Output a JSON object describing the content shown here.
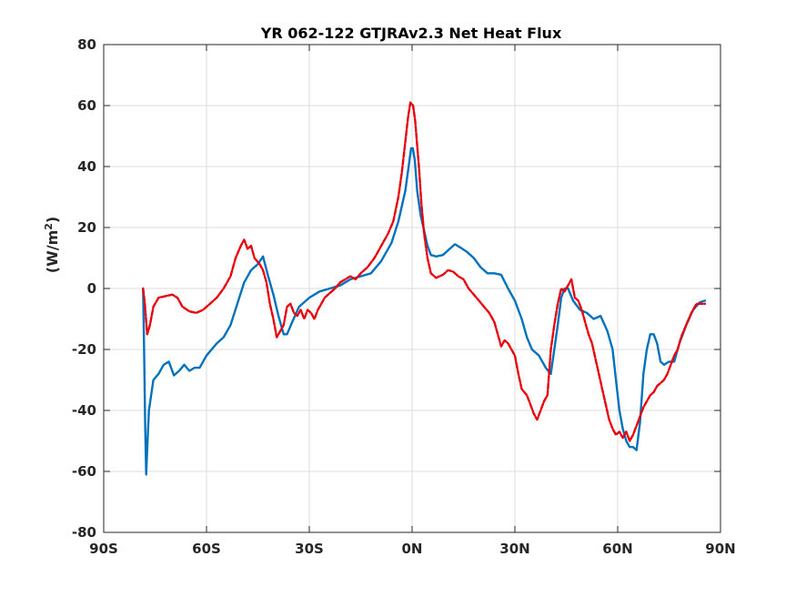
{
  "chart_data": {
    "type": "line",
    "title": "YR 062-122 GTJRAv2.3    Net Heat Flux",
    "xlabel": "",
    "ylabel_main": "(W/m",
    "ylabel_sup": "2",
    "ylabel_close": ")",
    "xlim": [
      -90,
      90
    ],
    "ylim": [
      -80,
      80
    ],
    "grid": true,
    "x_ticks": [
      {
        "value": -90,
        "label": "90S"
      },
      {
        "value": -60,
        "label": "60S"
      },
      {
        "value": -30,
        "label": "30S"
      },
      {
        "value": 0,
        "label": "0N"
      },
      {
        "value": 30,
        "label": "30N"
      },
      {
        "value": 60,
        "label": "60N"
      },
      {
        "value": 90,
        "label": "90N"
      }
    ],
    "y_ticks": [
      {
        "value": 80,
        "label": "80"
      },
      {
        "value": 60,
        "label": "60"
      },
      {
        "value": 40,
        "label": "40"
      },
      {
        "value": 20,
        "label": "20"
      },
      {
        "value": 0,
        "label": "0"
      },
      {
        "value": -20,
        "label": "-20"
      },
      {
        "value": -40,
        "label": "-40"
      },
      {
        "value": -60,
        "label": "-60"
      },
      {
        "value": -80,
        "label": "-80"
      }
    ],
    "series": [
      {
        "color": "#0072BD",
        "style": "solid",
        "points": [
          [
            -78.5,
            0
          ],
          [
            -78.2,
            -20
          ],
          [
            -77.9,
            -45
          ],
          [
            -77.6,
            -61
          ],
          [
            -77.2,
            -50
          ],
          [
            -76.8,
            -40
          ],
          [
            -75.5,
            -30
          ],
          [
            -74,
            -28
          ],
          [
            -72.5,
            -25
          ],
          [
            -71,
            -24
          ],
          [
            -69.5,
            -28.5
          ],
          [
            -68,
            -27
          ],
          [
            -66.5,
            -25
          ],
          [
            -65,
            -27
          ],
          [
            -63.5,
            -26
          ],
          [
            -62,
            -26
          ],
          [
            -60,
            -22
          ],
          [
            -57,
            -18
          ],
          [
            -55,
            -16
          ],
          [
            -53,
            -12
          ],
          [
            -51,
            -5
          ],
          [
            -49,
            2
          ],
          [
            -47,
            6
          ],
          [
            -45,
            8
          ],
          [
            -43.5,
            10.5
          ],
          [
            -42,
            4
          ],
          [
            -40.5,
            -2
          ],
          [
            -39,
            -9
          ],
          [
            -37.5,
            -15
          ],
          [
            -36.5,
            -15
          ],
          [
            -35,
            -11
          ],
          [
            -33,
            -6
          ],
          [
            -30,
            -3
          ],
          [
            -27,
            -1
          ],
          [
            -24,
            0
          ],
          [
            -21,
            1
          ],
          [
            -18,
            3
          ],
          [
            -15,
            4
          ],
          [
            -12,
            5
          ],
          [
            -9,
            9
          ],
          [
            -6,
            15
          ],
          [
            -4,
            22
          ],
          [
            -2,
            32
          ],
          [
            -1,
            40
          ],
          [
            -0.3,
            46
          ],
          [
            0.2,
            46
          ],
          [
            0.8,
            42
          ],
          [
            1.5,
            32
          ],
          [
            2.5,
            24
          ],
          [
            3.5,
            19
          ],
          [
            4.5,
            14
          ],
          [
            5.5,
            11
          ],
          [
            7,
            10.5
          ],
          [
            9,
            11
          ],
          [
            11,
            13
          ],
          [
            12.5,
            14.5
          ],
          [
            14,
            13.5
          ],
          [
            16,
            12
          ],
          [
            18,
            10
          ],
          [
            20,
            7
          ],
          [
            22,
            5
          ],
          [
            24,
            5
          ],
          [
            26,
            4.5
          ],
          [
            28,
            0
          ],
          [
            30,
            -4
          ],
          [
            32,
            -10
          ],
          [
            33.5,
            -16
          ],
          [
            35,
            -20
          ],
          [
            37,
            -22
          ],
          [
            39,
            -26
          ],
          [
            40.5,
            -28
          ],
          [
            41.5,
            -20
          ],
          [
            42.5,
            -12
          ],
          [
            43.5,
            -3
          ],
          [
            44.5,
            0
          ],
          [
            45.5,
            0
          ],
          [
            47,
            -4
          ],
          [
            49,
            -7
          ],
          [
            51,
            -8
          ],
          [
            53,
            -10
          ],
          [
            55,
            -9
          ],
          [
            57,
            -14
          ],
          [
            58.5,
            -20
          ],
          [
            59.5,
            -30
          ],
          [
            60.5,
            -40
          ],
          [
            61.5,
            -46
          ],
          [
            62.5,
            -50
          ],
          [
            63.5,
            -52
          ],
          [
            64.5,
            -52
          ],
          [
            65.5,
            -53
          ],
          [
            66.5,
            -44
          ],
          [
            67.5,
            -28
          ],
          [
            68.5,
            -20
          ],
          [
            69.5,
            -15
          ],
          [
            70.5,
            -15
          ],
          [
            71.5,
            -18
          ],
          [
            72.5,
            -24
          ],
          [
            73.5,
            -25
          ],
          [
            75,
            -24
          ],
          [
            76.5,
            -24
          ],
          [
            78,
            -18
          ],
          [
            80,
            -12
          ],
          [
            82,
            -7
          ],
          [
            84,
            -4.5
          ],
          [
            85.5,
            -4
          ]
        ]
      },
      {
        "color": "#E8000B",
        "style": "dashed",
        "points": [
          [
            -78.5,
            0
          ],
          [
            -78,
            -5
          ],
          [
            -77.3,
            -15
          ],
          [
            -76.5,
            -12
          ],
          [
            -75.5,
            -6
          ],
          [
            -74,
            -3
          ],
          [
            -72,
            -2.5
          ],
          [
            -70,
            -2
          ],
          [
            -68.5,
            -3
          ],
          [
            -67,
            -6
          ],
          [
            -65,
            -7.5
          ],
          [
            -63,
            -8
          ],
          [
            -61,
            -7
          ],
          [
            -59,
            -5
          ],
          [
            -57,
            -3
          ],
          [
            -55,
            0
          ],
          [
            -53,
            4
          ],
          [
            -51.5,
            10
          ],
          [
            -50,
            14
          ],
          [
            -49,
            16
          ],
          [
            -48,
            13
          ],
          [
            -47,
            14
          ],
          [
            -46,
            10
          ],
          [
            -44.5,
            8
          ],
          [
            -43.5,
            6
          ],
          [
            -42.5,
            2
          ],
          [
            -41.5,
            -5
          ],
          [
            -40.5,
            -10
          ],
          [
            -39.5,
            -16
          ],
          [
            -38.5,
            -14
          ],
          [
            -37.5,
            -12
          ],
          [
            -36.5,
            -6
          ],
          [
            -35.5,
            -5
          ],
          [
            -34.5,
            -8
          ],
          [
            -33.5,
            -9
          ],
          [
            -32.5,
            -7
          ],
          [
            -31.5,
            -10
          ],
          [
            -30.5,
            -7
          ],
          [
            -29.5,
            -8
          ],
          [
            -28.5,
            -10
          ],
          [
            -27.5,
            -7
          ],
          [
            -26.5,
            -5
          ],
          [
            -25.5,
            -3
          ],
          [
            -24.5,
            -2
          ],
          [
            -23.5,
            -1
          ],
          [
            -22.5,
            0
          ],
          [
            -21,
            2
          ],
          [
            -19.5,
            3
          ],
          [
            -18,
            4
          ],
          [
            -16.5,
            3
          ],
          [
            -15,
            5
          ],
          [
            -13,
            7
          ],
          [
            -11,
            10
          ],
          [
            -9,
            14
          ],
          [
            -7,
            18
          ],
          [
            -5.5,
            22
          ],
          [
            -4,
            30
          ],
          [
            -3,
            38
          ],
          [
            -2,
            48
          ],
          [
            -1.2,
            56
          ],
          [
            -0.5,
            61
          ],
          [
            0.3,
            60
          ],
          [
            0.9,
            55
          ],
          [
            1.4,
            48
          ],
          [
            2,
            40
          ],
          [
            2.7,
            28
          ],
          [
            3.5,
            18
          ],
          [
            4.5,
            10
          ],
          [
            5.5,
            5
          ],
          [
            7,
            3.5
          ],
          [
            9,
            4.5
          ],
          [
            10.5,
            6
          ],
          [
            12,
            5.5
          ],
          [
            13.5,
            4
          ],
          [
            15,
            3
          ],
          [
            16.5,
            0
          ],
          [
            18,
            -2
          ],
          [
            19.5,
            -4
          ],
          [
            21,
            -6
          ],
          [
            22.5,
            -8
          ],
          [
            24,
            -11
          ],
          [
            25,
            -15
          ],
          [
            26,
            -19
          ],
          [
            27,
            -17
          ],
          [
            28,
            -18
          ],
          [
            29,
            -20
          ],
          [
            30,
            -22
          ],
          [
            31,
            -28
          ],
          [
            32,
            -33
          ],
          [
            33.5,
            -35
          ],
          [
            34.5,
            -38
          ],
          [
            35.5,
            -41
          ],
          [
            36.5,
            -43
          ],
          [
            37.5,
            -40
          ],
          [
            38.5,
            -37
          ],
          [
            39.5,
            -35
          ],
          [
            40.5,
            -20
          ],
          [
            41.5,
            -12
          ],
          [
            42.5,
            -5
          ],
          [
            43.5,
            0
          ],
          [
            44.5,
            -1
          ],
          [
            45.5,
            1
          ],
          [
            46.5,
            3
          ],
          [
            47.5,
            -3
          ],
          [
            48.5,
            -4
          ],
          [
            49.5,
            -7
          ],
          [
            50.5,
            -11
          ],
          [
            51.5,
            -15
          ],
          [
            52.5,
            -18
          ],
          [
            53.5,
            -23
          ],
          [
            54.5,
            -28
          ],
          [
            55.5,
            -33
          ],
          [
            56.5,
            -38
          ],
          [
            57.5,
            -43
          ],
          [
            58.5,
            -46
          ],
          [
            59.5,
            -48
          ],
          [
            60.5,
            -47
          ],
          [
            61.5,
            -49
          ],
          [
            62.5,
            -47
          ],
          [
            63.5,
            -50
          ],
          [
            64.5,
            -48
          ],
          [
            65.5,
            -45
          ],
          [
            66.5,
            -42
          ],
          [
            67.5,
            -39
          ],
          [
            68.5,
            -37
          ],
          [
            69.5,
            -35
          ],
          [
            70.5,
            -34
          ],
          [
            71.5,
            -32
          ],
          [
            72.5,
            -31
          ],
          [
            73.5,
            -30
          ],
          [
            74.5,
            -28
          ],
          [
            75.5,
            -25
          ],
          [
            76.5,
            -22
          ],
          [
            77.5,
            -20
          ],
          [
            78.5,
            -16
          ],
          [
            80,
            -12
          ],
          [
            81.5,
            -8
          ],
          [
            83,
            -5
          ],
          [
            84.5,
            -5
          ],
          [
            85.5,
            -5
          ]
        ]
      }
    ]
  }
}
